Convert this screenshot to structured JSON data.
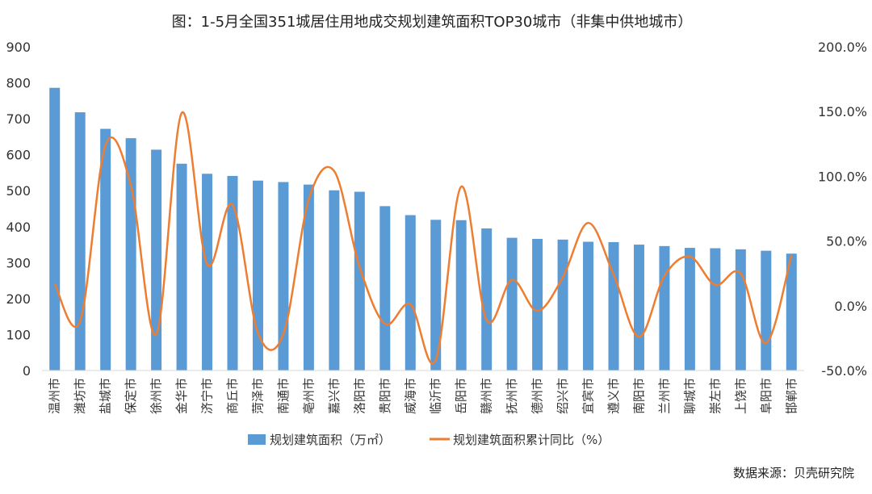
{
  "chart_data": {
    "type": "bar",
    "title": "图：1-5月全国351城居住用地成交规划建筑面积TOP30城市（非集中供地城市）",
    "categories": [
      "温州市",
      "潍坊市",
      "盐城市",
      "保定市",
      "徐州市",
      "金华市",
      "济宁市",
      "商丘市",
      "菏泽市",
      "南通市",
      "亳州市",
      "嘉兴市",
      "洛阳市",
      "贵阳市",
      "威海市",
      "临沂市",
      "岳阳市",
      "赣州市",
      "抚州市",
      "德州市",
      "绍兴市",
      "宜宾市",
      "遵义市",
      "南阳市",
      "兰州市",
      "聊城市",
      "崇左市",
      "上饶市",
      "阜阳市",
      "邯郸市"
    ],
    "series": [
      {
        "name": "规划建筑面积（万㎡）",
        "type": "bar",
        "axis": "left",
        "color": "#5B9BD5",
        "values": [
          786,
          718,
          672,
          646,
          614,
          575,
          547,
          541,
          528,
          524,
          517,
          501,
          497,
          457,
          432,
          419,
          418,
          395,
          369,
          366,
          364,
          358,
          357,
          350,
          346,
          341,
          340,
          337,
          333,
          325
        ]
      },
      {
        "name": "规划建筑面积累计同比（%）",
        "type": "line",
        "axis": "right",
        "color": "#ED7D31",
        "values": [
          17,
          -12,
          124,
          93,
          -22,
          149,
          32,
          78,
          -21,
          -22,
          82,
          104,
          30,
          -14,
          1,
          -42,
          92,
          -11,
          20,
          -4,
          22,
          64,
          24,
          -24,
          23,
          38,
          16,
          25,
          -29,
          39
        ]
      }
    ],
    "y_left": {
      "min": 0,
      "max": 900,
      "step": 100,
      "ticks": [
        "0",
        "100",
        "200",
        "300",
        "400",
        "500",
        "600",
        "700",
        "800",
        "900"
      ]
    },
    "y_right": {
      "min": -50,
      "max": 200,
      "step": 50,
      "ticks": [
        "-50.0%",
        "0.0%",
        "50.0%",
        "100.0%",
        "150.0%",
        "200.0%"
      ]
    },
    "grid": false,
    "legend_position": "bottom",
    "source_note": "数据来源：贝壳研究院"
  }
}
